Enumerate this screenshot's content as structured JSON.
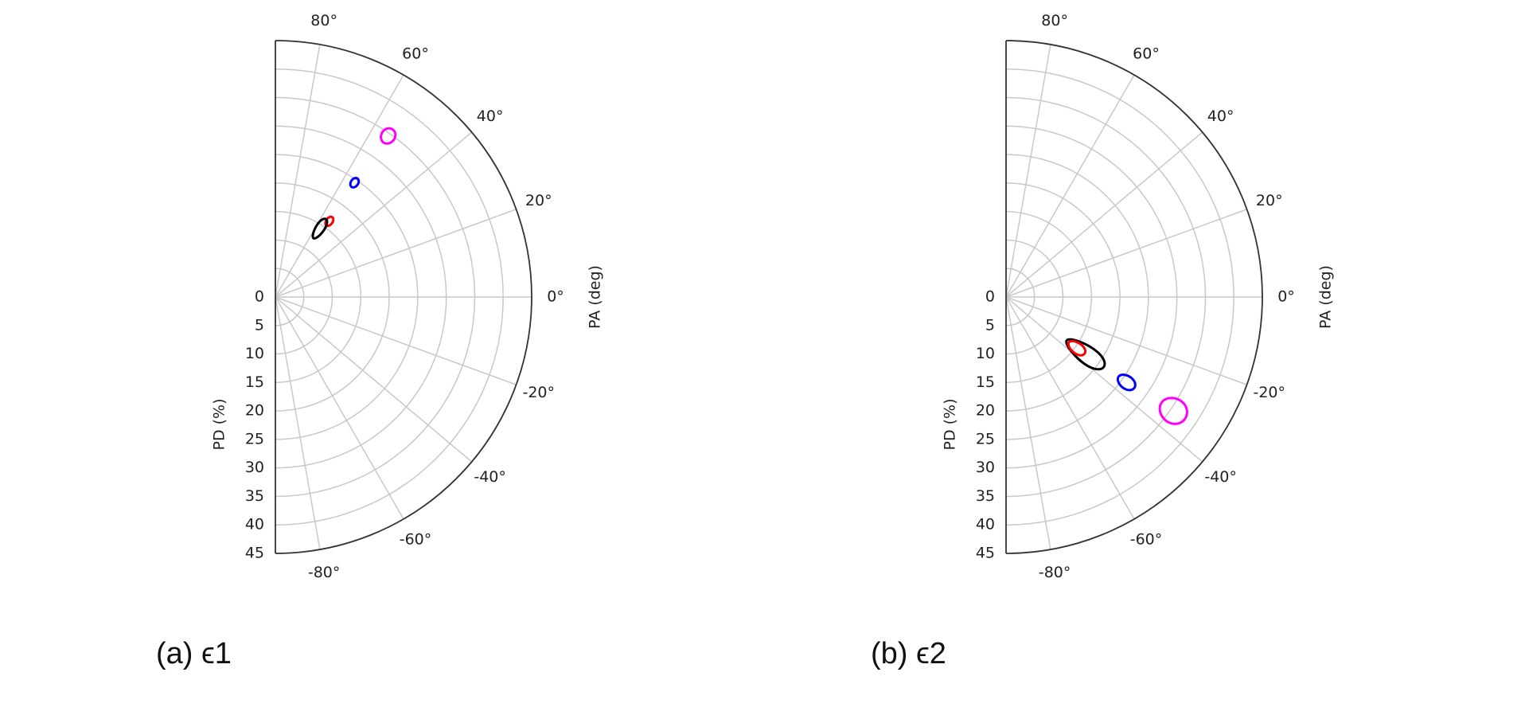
{
  "chart_data": [
    {
      "type": "polar",
      "caption": "(a) ϵ1",
      "xlabel": "PA (deg)",
      "ylabel": "PD (%)",
      "grid": true,
      "thetalim": [
        -90,
        90
      ],
      "rlim": [
        0,
        45
      ],
      "thetaticks": [
        {
          "value": 80,
          "label": "80°"
        },
        {
          "value": 60,
          "label": "60°"
        },
        {
          "value": 40,
          "label": "40°"
        },
        {
          "value": 20,
          "label": "20°"
        },
        {
          "value": 0,
          "label": "0°"
        },
        {
          "value": -20,
          "label": "-20°"
        },
        {
          "value": -40,
          "label": "-40°"
        },
        {
          "value": -60,
          "label": "-60°"
        },
        {
          "value": -80,
          "label": "-80°"
        }
      ],
      "rticks": [
        0,
        5,
        10,
        15,
        20,
        25,
        30,
        35,
        40,
        45
      ],
      "series": [
        {
          "color": "#ff00ff",
          "x": [
            55
          ],
          "values": [
            34.5
          ],
          "xerr": [
            2
          ],
          "yerr": [
            1.4
          ]
        },
        {
          "color": "#0000ff",
          "x": [
            55.3
          ],
          "values": [
            24.4
          ],
          "xerr": [
            1.5
          ],
          "yerr": [
            0.9
          ]
        },
        {
          "color": "#ff0000",
          "x": [
            54.5
          ],
          "values": [
            16.3
          ],
          "xerr": [
            2
          ],
          "yerr": [
            0.9
          ]
        },
        {
          "color": "#000000",
          "x": [
            57
          ],
          "values": [
            14.3
          ],
          "xerr": [
            3
          ],
          "yerr": [
            2
          ]
        }
      ]
    },
    {
      "type": "polar",
      "caption": "(b) ϵ2",
      "xlabel": "PA (deg)",
      "ylabel": "PD (%)",
      "grid": true,
      "thetalim": [
        -90,
        90
      ],
      "rlim": [
        0,
        45
      ],
      "thetaticks": [
        {
          "value": 80,
          "label": "80°"
        },
        {
          "value": 60,
          "label": "60°"
        },
        {
          "value": 40,
          "label": "40°"
        },
        {
          "value": 20,
          "label": "20°"
        },
        {
          "value": 0,
          "label": "0°"
        },
        {
          "value": -20,
          "label": "-20°"
        },
        {
          "value": -40,
          "label": "-40°"
        },
        {
          "value": -60,
          "label": "-60°"
        },
        {
          "value": -80,
          "label": "-80°"
        }
      ],
      "rticks": [
        0,
        5,
        10,
        15,
        20,
        25,
        30,
        35,
        40,
        45
      ],
      "series": [
        {
          "color": "#ff00ff",
          "x": [
            -34.2
          ],
          "values": [
            35.5
          ],
          "xerr": [
            3.5
          ],
          "yerr": [
            2.5
          ]
        },
        {
          "color": "#0000ff",
          "x": [
            -35.3
          ],
          "values": [
            25.9
          ],
          "xerr": [
            2.5
          ],
          "yerr": [
            1.7
          ]
        },
        {
          "color": "#000000",
          "x": [
            -35.6
          ],
          "values": [
            17.1
          ],
          "xerr": [
            5
          ],
          "yerr": [
            4
          ]
        },
        {
          "color": "#ff0000",
          "x": [
            -35.8
          ],
          "values": [
            15.3
          ],
          "xerr": [
            3.5
          ],
          "yerr": [
            1.7
          ]
        }
      ]
    }
  ]
}
